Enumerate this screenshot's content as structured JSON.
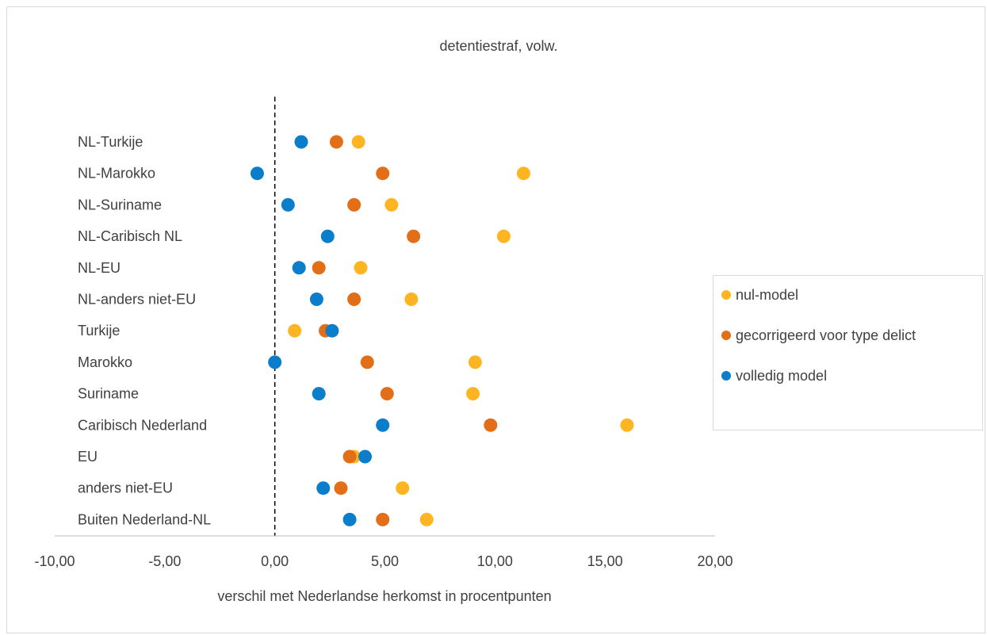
{
  "chart_data": {
    "type": "scatter",
    "title": "detentiestraf, volw.",
    "xlabel": "verschil met Nederlandse herkomst in procentpunten",
    "ylabel": "",
    "xlim": [
      -10,
      20
    ],
    "xticks": [
      -10,
      -5,
      0,
      5,
      10,
      15,
      20
    ],
    "xtick_labels": [
      "-10,00",
      "-5,00",
      "0,00",
      "5,00",
      "10,00",
      "15,00",
      "20,00"
    ],
    "reference_line_x": 0,
    "reference_line_style": "dashed",
    "categories": [
      "NL-Turkije",
      "NL-Marokko",
      "NL-Suriname",
      "NL-Caribisch NL",
      "NL-EU",
      "NL-anders niet-EU",
      "Turkije",
      "Marokko",
      "Suriname",
      "Caribisch Nederland",
      "EU",
      "anders niet-EU",
      "Buiten Nederland-NL"
    ],
    "series": [
      {
        "name": "nul-model",
        "color": "#FFB521",
        "values": [
          3.8,
          11.3,
          5.3,
          10.4,
          3.9,
          6.2,
          0.9,
          9.1,
          9.0,
          16.0,
          3.6,
          5.8,
          6.9
        ]
      },
      {
        "name": "gecorrigeerd voor type delict",
        "color": "#E26E17",
        "values": [
          2.8,
          4.9,
          3.6,
          6.3,
          2.0,
          3.6,
          2.3,
          4.2,
          5.1,
          9.8,
          3.4,
          3.0,
          4.9
        ]
      },
      {
        "name": "volledig model",
        "color": "#0A7DCB",
        "values": [
          1.2,
          -0.8,
          0.6,
          2.4,
          1.1,
          1.9,
          2.6,
          0.0,
          2.0,
          4.9,
          4.1,
          2.2,
          3.4
        ]
      }
    ],
    "grid": false,
    "legend_position": "right"
  }
}
